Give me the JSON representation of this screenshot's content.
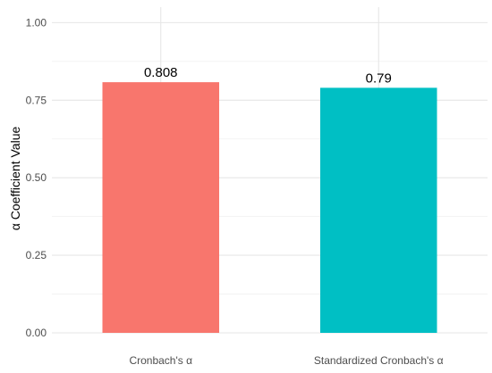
{
  "chart_data": {
    "type": "bar",
    "categories": [
      "Cronbach's α",
      "Standardized Cronbach's α"
    ],
    "values": [
      0.808,
      0.79
    ],
    "data_labels": [
      "0.808",
      "0.79"
    ],
    "colors": [
      "#F8766D",
      "#00BFC4"
    ],
    "ylabel": "α Coefficient Value",
    "xlabel": "",
    "ylim": [
      0,
      1.05
    ],
    "yticks": [
      0,
      0.25,
      0.5,
      0.75,
      1.0
    ],
    "ytick_labels": [
      "0.00",
      "0.25",
      "0.50",
      "0.75",
      "1.00"
    ],
    "grid": true,
    "legend": "none"
  }
}
